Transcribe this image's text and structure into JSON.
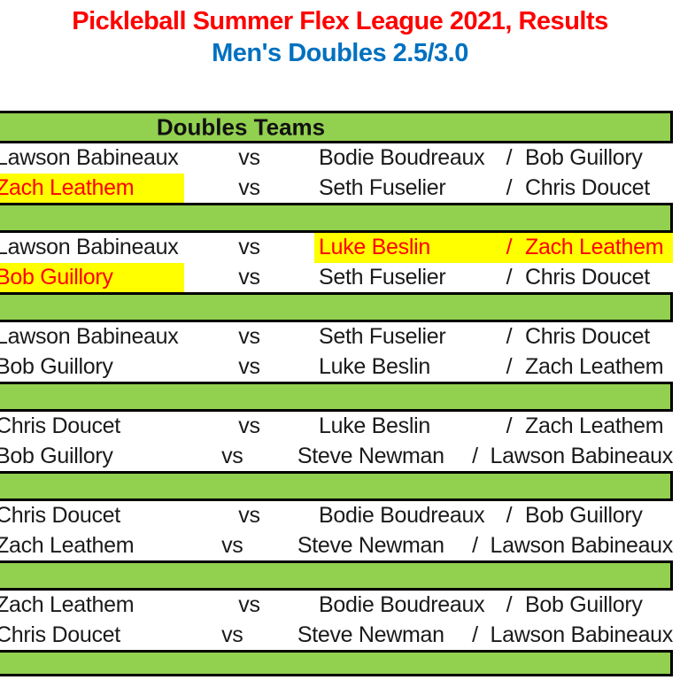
{
  "header": {
    "title": "Pickleball Summer Flex League 2021, Results",
    "subtitle": "Men's Doubles 2.5/3.0"
  },
  "table": {
    "header": "Doubles Teams",
    "vs_label": "vs",
    "slash": "/",
    "groups": [
      {
        "matches": [
          {
            "p1": "Lawson Babineaux",
            "o1": "Bodie Boudreaux",
            "o2": "Bob Guillory",
            "p1_highlight": false,
            "opp_highlight": false
          },
          {
            "p1": "Zach Leathem",
            "o1": "Seth Fuselier",
            "o2": "Chris Doucet",
            "p1_highlight": true,
            "opp_highlight": false
          }
        ]
      },
      {
        "matches": [
          {
            "p1": "Lawson Babineaux",
            "o1": "Luke Beslin",
            "o2": "Zach Leathem",
            "p1_highlight": false,
            "opp_highlight": true
          },
          {
            "p1": "Bob Guillory",
            "o1": "Seth Fuselier",
            "o2": "Chris Doucet",
            "p1_highlight": true,
            "opp_highlight": false
          }
        ]
      },
      {
        "matches": [
          {
            "p1": "Lawson Babineaux",
            "o1": "Seth Fuselier",
            "o2": "Chris Doucet",
            "p1_highlight": false,
            "opp_highlight": false
          },
          {
            "p1": "Bob Guillory",
            "o1": "Luke Beslin",
            "o2": "Zach Leathem",
            "p1_highlight": false,
            "opp_highlight": false
          }
        ]
      },
      {
        "matches": [
          {
            "p1": "Chris Doucet",
            "o1": "Luke Beslin",
            "o2": "Zach Leathem",
            "p1_highlight": false,
            "opp_highlight": false
          },
          {
            "p1": "Bob Guillory",
            "o1": "Steve Newman",
            "o2": "Lawson Babineaux",
            "p1_highlight": false,
            "opp_highlight": false
          }
        ]
      },
      {
        "matches": [
          {
            "p1": "Chris Doucet",
            "o1": "Bodie Boudreaux",
            "o2": "Bob Guillory",
            "p1_highlight": false,
            "opp_highlight": false
          },
          {
            "p1": "Zach Leathem",
            "o1": "Steve Newman",
            "o2": "Lawson Babineaux",
            "p1_highlight": false,
            "opp_highlight": false
          }
        ]
      },
      {
        "matches": [
          {
            "p1": "Zach Leathem",
            "o1": "Bodie Boudreaux",
            "o2": "Bob Guillory",
            "p1_highlight": false,
            "opp_highlight": false
          },
          {
            "p1": "Chris Doucet",
            "o1": "Steve Newman",
            "o2": "Lawson Babineaux",
            "p1_highlight": false,
            "opp_highlight": false
          }
        ]
      }
    ]
  },
  "colors": {
    "title_red": "#FF0000",
    "subtitle_blue": "#0070C0",
    "band_green": "#92D050",
    "highlight_yellow": "#FFFF00",
    "highlight_text_red": "#FF0000"
  }
}
